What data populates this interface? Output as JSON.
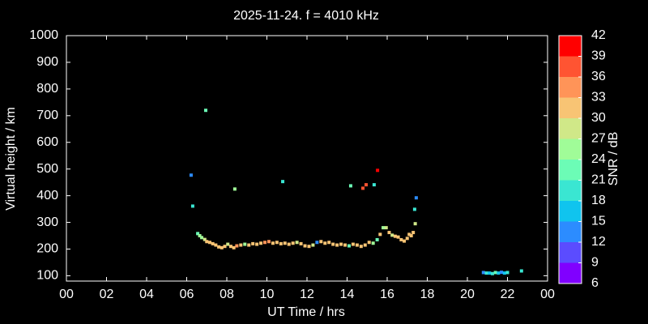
{
  "chart_data": {
    "type": "scatter",
    "title": "2025-11-24. f = 4010 kHz",
    "xlabel": "UT Time / hrs",
    "ylabel": "Virtual height / km",
    "xlim": [
      0,
      24
    ],
    "xticks": [
      {
        "value": 0,
        "label": "00"
      },
      {
        "value": 2,
        "label": "02"
      },
      {
        "value": 4,
        "label": "04"
      },
      {
        "value": 6,
        "label": "06"
      },
      {
        "value": 8,
        "label": "08"
      },
      10,
      12,
      14,
      16,
      18,
      20,
      22,
      {
        "value": 24,
        "label": "00"
      }
    ],
    "ylim": [
      80,
      1000
    ],
    "yticks": [
      100,
      200,
      300,
      400,
      500,
      600,
      700,
      800,
      900,
      1000
    ],
    "x": [
      6.22,
      6.3,
      6.55,
      6.65,
      6.75,
      6.9,
      6.95,
      7.0,
      7.15,
      7.3,
      7.45,
      7.6,
      7.75,
      7.9,
      8.05,
      8.2,
      8.35,
      8.4,
      8.5,
      8.7,
      8.9,
      9.1,
      9.3,
      9.5,
      9.7,
      9.9,
      10.1,
      10.3,
      10.5,
      10.7,
      10.79,
      10.9,
      11.1,
      11.3,
      11.5,
      11.7,
      11.9,
      12.1,
      12.3,
      12.5,
      12.7,
      12.9,
      13.1,
      13.3,
      13.5,
      13.7,
      13.9,
      14.1,
      14.18,
      14.3,
      14.5,
      14.7,
      14.79,
      14.9,
      14.95,
      15.1,
      15.3,
      15.35,
      15.5,
      15.52,
      15.65,
      15.8,
      15.95,
      16.1,
      16.25,
      16.4,
      16.55,
      16.7,
      16.85,
      17.0,
      17.1,
      17.2,
      17.3,
      17.37,
      17.4,
      17.45,
      20.8,
      20.95,
      21.1,
      21.25,
      21.4,
      21.55,
      21.7,
      21.85,
      22.0,
      22.7
    ],
    "values": [
      477,
      361,
      258,
      250,
      243,
      236,
      720,
      228,
      225,
      220,
      215,
      208,
      205,
      210,
      218,
      210,
      205,
      425,
      212,
      215,
      218,
      215,
      220,
      218,
      222,
      225,
      228,
      222,
      225,
      220,
      453,
      222,
      218,
      222,
      225,
      220,
      212,
      210,
      215,
      225,
      228,
      222,
      225,
      218,
      215,
      218,
      215,
      212,
      437,
      218,
      215,
      210,
      428,
      215,
      441,
      225,
      222,
      441,
      235,
      495,
      255,
      280,
      280,
      262,
      252,
      248,
      245,
      235,
      230,
      240,
      255,
      250,
      262,
      349,
      295,
      392,
      112,
      110,
      110,
      108,
      112,
      110,
      113,
      110,
      112,
      118
    ],
    "snr": [
      13,
      19,
      22,
      24,
      26,
      28,
      21,
      31,
      32,
      31,
      32,
      31,
      31,
      32,
      28,
      31,
      31,
      25,
      33,
      31,
      26,
      31,
      32,
      31,
      31,
      33,
      34,
      31,
      31,
      30,
      20,
      31,
      31,
      31,
      28,
      31,
      32,
      31,
      27,
      14,
      31,
      32,
      31,
      32,
      31,
      31,
      31,
      22,
      21,
      31,
      32,
      31,
      38,
      31,
      37,
      31,
      24,
      18,
      22,
      40,
      31,
      24,
      27,
      31,
      28,
      31,
      31,
      32,
      31,
      31,
      31,
      30,
      31,
      20,
      27,
      13,
      13,
      18,
      17,
      19,
      22,
      17,
      13,
      17,
      19,
      18
    ],
    "colorbar": {
      "label": "SNR / dB",
      "lim": [
        6,
        42
      ],
      "ticks": [
        6,
        9,
        12,
        15,
        18,
        21,
        24,
        27,
        30,
        33,
        36,
        39,
        42
      ],
      "colors": [
        "#8000ff",
        "#5b4cff",
        "#2c8cff",
        "#10c4ee",
        "#3ae6d2",
        "#6cfcb6",
        "#a0fc98",
        "#d0e888",
        "#f8c474",
        "#ff9458",
        "#ff5432",
        "#ff0000"
      ]
    }
  }
}
